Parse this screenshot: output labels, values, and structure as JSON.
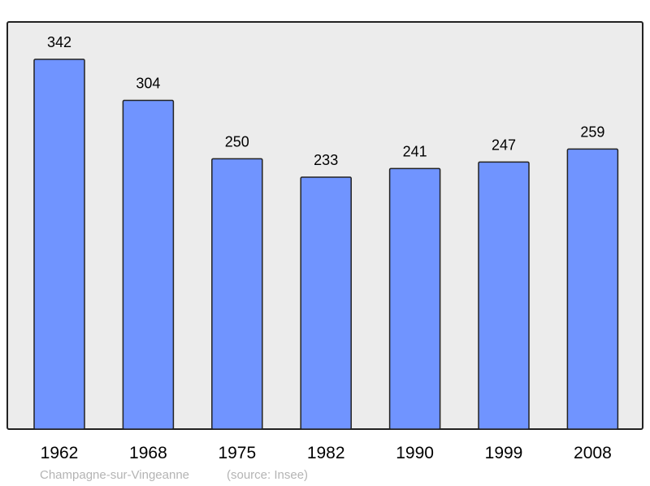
{
  "chart_data": {
    "type": "bar",
    "categories": [
      "1962",
      "1968",
      "1975",
      "1982",
      "1990",
      "1999",
      "2008"
    ],
    "values": [
      342,
      304,
      250,
      233,
      241,
      247,
      259
    ],
    "title": "",
    "xlabel": "",
    "ylabel": "",
    "ylim": [
      0,
      376
    ],
    "grid": false,
    "data_labels": true,
    "bar_color": "#7094ff",
    "background_color": "#ececec"
  },
  "footer": {
    "place": "Champagne-sur-Vingeanne",
    "source": "(source: Insee)"
  }
}
